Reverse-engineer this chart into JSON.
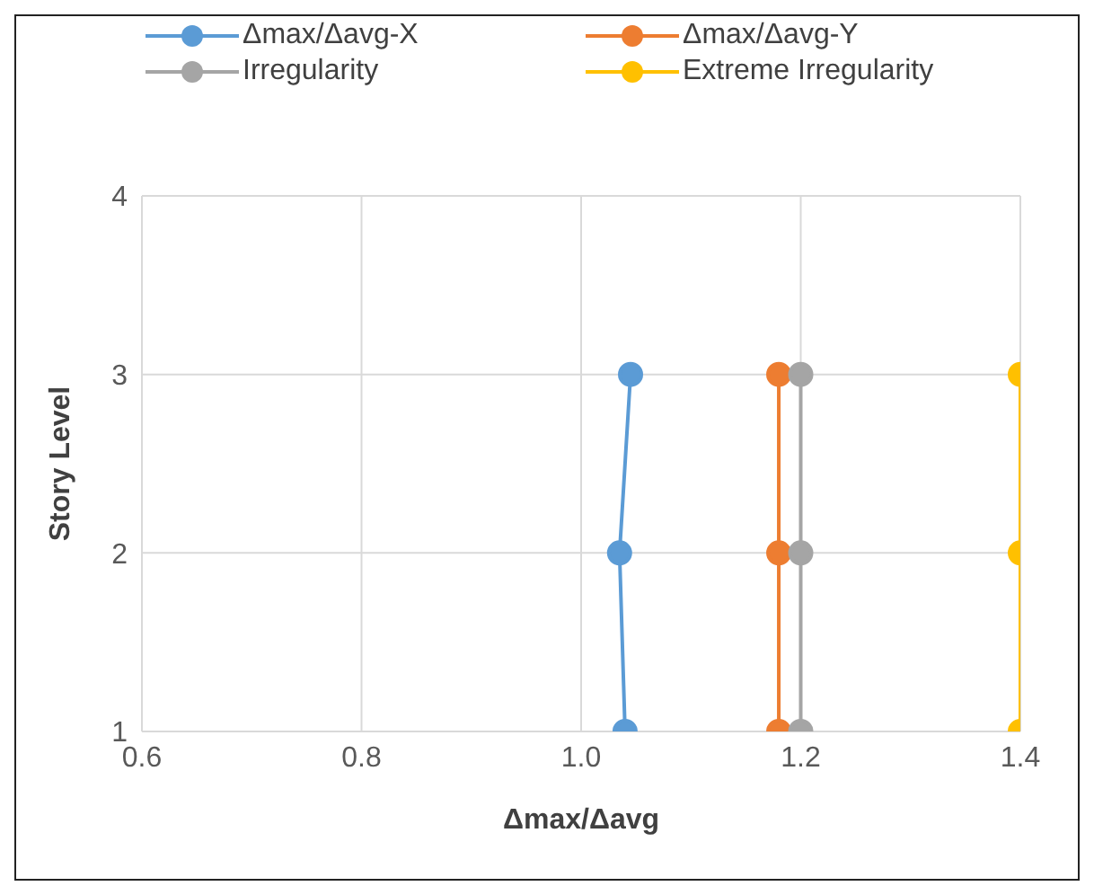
{
  "chart_data": {
    "type": "line",
    "xlabel": "Δmax/Δavg",
    "ylabel": "Story Level",
    "xlim": [
      0.6,
      1.4
    ],
    "xticks": [
      {
        "value": 0.6,
        "label": "0.6"
      },
      {
        "value": 0.8,
        "label": "0.8"
      },
      {
        "value": 1.0,
        "label": "1.0"
      },
      {
        "value": 1.2,
        "label": "1.2"
      },
      {
        "value": 1.4,
        "label": "1.4"
      }
    ],
    "ylim": [
      1,
      4
    ],
    "yticks": [
      1,
      2,
      3,
      4
    ],
    "grid": true,
    "legend": "top",
    "marker": "circle",
    "line_style": "solid",
    "series": [
      {
        "name": "Δmax/Δavg-X",
        "color": "#5b9bd5",
        "x": [
          1.04,
          1.035,
          1.045
        ],
        "values": [
          1,
          2,
          3
        ]
      },
      {
        "name": "Δmax/Δavg-Y",
        "color": "#ed7d31",
        "x": [
          1.18,
          1.18,
          1.18
        ],
        "values": [
          1,
          2,
          3
        ]
      },
      {
        "name": "Irregularity",
        "color": "#a5a5a5",
        "x": [
          1.2,
          1.2,
          1.2
        ],
        "values": [
          1,
          2,
          3
        ]
      },
      {
        "name": "Extreme Irregularity",
        "color": "#ffc000",
        "x": [
          1.4,
          1.4,
          1.4
        ],
        "values": [
          1,
          2,
          3
        ]
      }
    ]
  }
}
